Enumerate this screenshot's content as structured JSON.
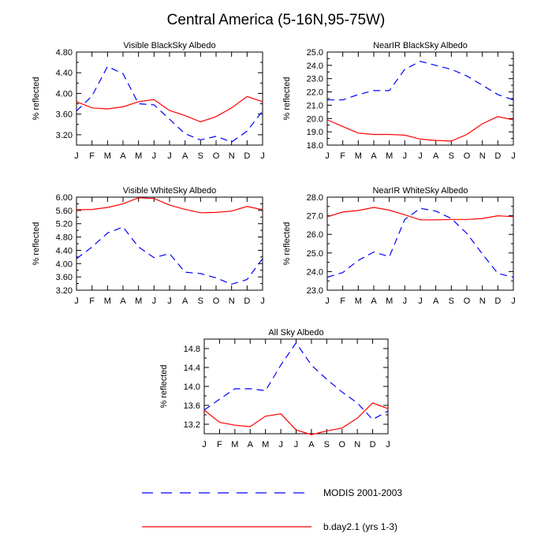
{
  "figure": {
    "title": "Central America (5-16N,95-75W)",
    "legend": [
      {
        "label": "MODIS 2001-2003",
        "color": "#0000ff",
        "dash": "dashed"
      },
      {
        "label": "b.day2.1 (yrs 1-3)",
        "color": "#ff0000",
        "dash": "solid"
      }
    ]
  },
  "chart_data": [
    {
      "type": "line",
      "title": "Visible BlackSky Albedo",
      "xlabel": "",
      "ylabel": "% reflected",
      "categories": [
        "J",
        "F",
        "M",
        "A",
        "M",
        "J",
        "J",
        "A",
        "S",
        "O",
        "N",
        "D",
        "J"
      ],
      "ylim": [
        3.0,
        4.8
      ],
      "yticks": [
        "3.20",
        "3.60",
        "4.00",
        "4.40",
        "4.80"
      ],
      "series": [
        {
          "name": "MODIS 2001-2003",
          "values": [
            3.66,
            3.95,
            4.52,
            4.38,
            3.8,
            3.78,
            3.5,
            3.22,
            3.1,
            3.17,
            3.06,
            3.27,
            3.66
          ]
        },
        {
          "name": "b.day2.1 (yrs 1-3)",
          "values": [
            3.84,
            3.72,
            3.7,
            3.74,
            3.84,
            3.88,
            3.67,
            3.57,
            3.45,
            3.55,
            3.72,
            3.94,
            3.84
          ]
        }
      ]
    },
    {
      "type": "line",
      "title": "NearIR BlackSky Albedo",
      "xlabel": "",
      "ylabel": "% reflected",
      "categories": [
        "J",
        "F",
        "M",
        "A",
        "M",
        "J",
        "J",
        "A",
        "S",
        "O",
        "N",
        "D",
        "J"
      ],
      "ylim": [
        18.0,
        25.0
      ],
      "yticks": [
        "18.0",
        "19.0",
        "20.0",
        "21.0",
        "22.0",
        "23.0",
        "24.0",
        "25.0"
      ],
      "series": [
        {
          "name": "MODIS 2001-2003",
          "values": [
            21.4,
            21.4,
            21.8,
            22.1,
            22.1,
            23.7,
            24.3,
            24.0,
            23.7,
            23.2,
            22.5,
            21.8,
            21.4
          ]
        },
        {
          "name": "b.day2.1 (yrs 1-3)",
          "values": [
            19.9,
            19.4,
            18.9,
            18.8,
            18.8,
            18.75,
            18.45,
            18.35,
            18.3,
            18.8,
            19.6,
            20.15,
            19.9
          ]
        }
      ]
    },
    {
      "type": "line",
      "title": "Visible WhiteSky Albedo",
      "xlabel": "",
      "ylabel": "% reflected",
      "categories": [
        "J",
        "F",
        "M",
        "A",
        "M",
        "J",
        "J",
        "A",
        "S",
        "O",
        "N",
        "D",
        "J"
      ],
      "ylim": [
        3.2,
        6.0
      ],
      "yticks": [
        "3.20",
        "3.60",
        "4.00",
        "4.40",
        "4.80",
        "5.20",
        "5.60",
        "6.00"
      ],
      "series": [
        {
          "name": "MODIS 2001-2003",
          "values": [
            4.15,
            4.5,
            4.92,
            5.1,
            4.5,
            4.18,
            4.3,
            3.74,
            3.7,
            3.57,
            3.38,
            3.52,
            4.15
          ]
        },
        {
          "name": "b.day2.1 (yrs 1-3)",
          "values": [
            5.62,
            5.63,
            5.69,
            5.8,
            5.98,
            5.96,
            5.76,
            5.63,
            5.53,
            5.54,
            5.58,
            5.72,
            5.62
          ]
        }
      ]
    },
    {
      "type": "line",
      "title": "NearIR WhiteSky Albedo",
      "xlabel": "",
      "ylabel": "% reflected",
      "categories": [
        "J",
        "F",
        "M",
        "A",
        "M",
        "J",
        "J",
        "A",
        "S",
        "O",
        "N",
        "D",
        "J"
      ],
      "ylim": [
        23.0,
        28.0
      ],
      "yticks": [
        "23.0",
        "24.0",
        "25.0",
        "26.0",
        "27.0",
        "28.0"
      ],
      "series": [
        {
          "name": "MODIS 2001-2003",
          "values": [
            23.7,
            23.95,
            24.6,
            25.05,
            24.8,
            26.8,
            27.4,
            27.25,
            26.85,
            26.05,
            24.95,
            23.9,
            23.7
          ]
        },
        {
          "name": "b.day2.1 (yrs 1-3)",
          "values": [
            26.95,
            27.2,
            27.28,
            27.45,
            27.3,
            27.05,
            26.78,
            26.78,
            26.8,
            26.8,
            26.85,
            27.0,
            26.95
          ]
        }
      ]
    },
    {
      "type": "line",
      "title": "All Sky Albedo",
      "xlabel": "",
      "ylabel": "% reflected",
      "categories": [
        "J",
        "F",
        "M",
        "A",
        "M",
        "J",
        "J",
        "A",
        "S",
        "O",
        "N",
        "D",
        "J"
      ],
      "ylim": [
        13.0,
        15.0
      ],
      "yticks": [
        "13.2",
        "13.6",
        "14.0",
        "14.4",
        "14.8"
      ],
      "series": [
        {
          "name": "MODIS 2001-2003",
          "values": [
            13.5,
            13.73,
            13.95,
            13.95,
            13.91,
            14.45,
            14.92,
            14.45,
            14.15,
            13.88,
            13.65,
            13.3,
            13.48
          ]
        },
        {
          "name": "b.day2.1 (yrs 1-3)",
          "values": [
            13.5,
            13.24,
            13.18,
            13.15,
            13.37,
            13.42,
            13.08,
            12.98,
            13.06,
            13.12,
            13.33,
            13.65,
            13.53
          ]
        }
      ]
    }
  ]
}
